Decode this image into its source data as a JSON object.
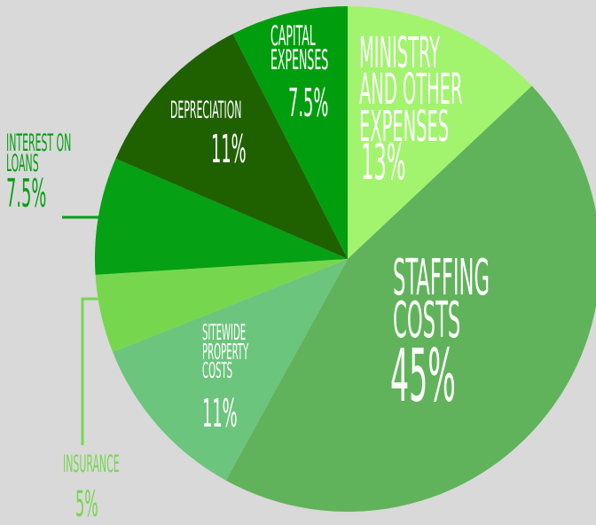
{
  "chart_data": {
    "type": "pie",
    "categories": [
      "MINISTRY\nAND OTHER\nEXPENSES",
      "STAFFING\nCOSTS",
      "SITEWIDE\nPROPERTY\nCOSTS",
      "INSURANCE",
      "INTEREST ON\nLOANS",
      "DEPRECIATION",
      "CAPITAL\nEXPENSES"
    ],
    "values": [
      13,
      45,
      11,
      5,
      7.5,
      11,
      7.5
    ],
    "value_labels": [
      "13%",
      "45%",
      "11%",
      "5%",
      "7.5%",
      "11%",
      "7.5%"
    ],
    "colors": [
      "#a2f46e",
      "#60b35a",
      "#6cc57c",
      "#76d74e",
      "#05a013",
      "#1f6100",
      "#009e0e"
    ]
  }
}
